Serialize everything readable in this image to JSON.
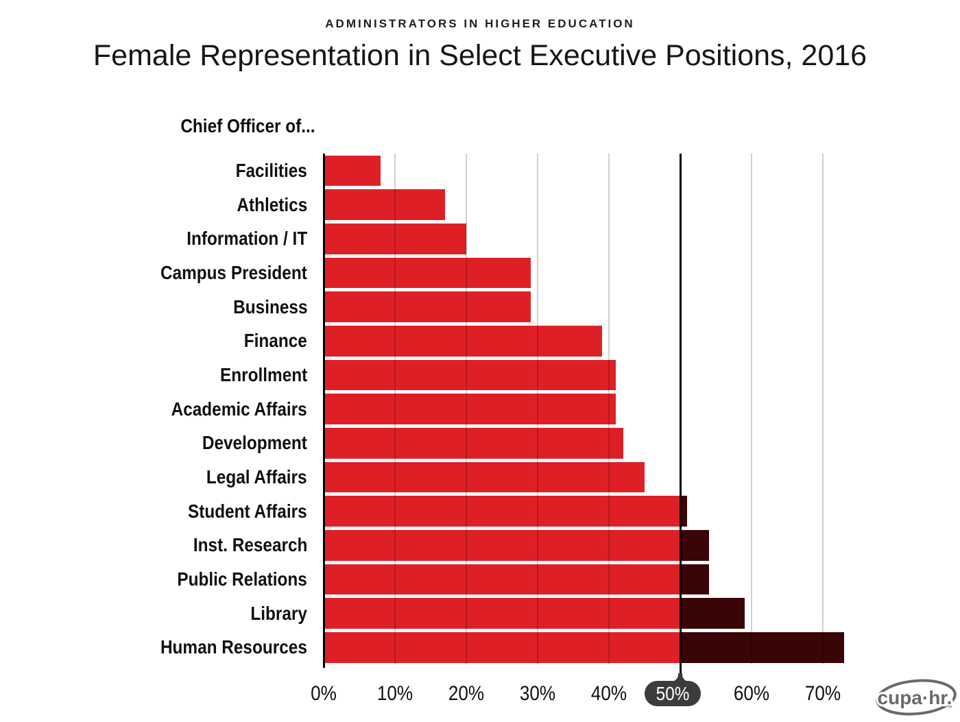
{
  "header": {
    "kicker": "ADMINISTRATORS IN HIGHER EDUCATION",
    "title": "Female Representation in Select Executive Positions, 2016"
  },
  "chart_data": {
    "type": "bar",
    "orientation": "horizontal",
    "group_label": "Chief Officer of...",
    "categories": [
      "Facilities",
      "Athletics",
      "Information / IT",
      "Campus President",
      "Business",
      "Finance",
      "Enrollment",
      "Academic Affairs",
      "Development",
      "Legal Affairs",
      "Student Affairs",
      "Inst. Research",
      "Public Relations",
      "Library",
      "Human Resources"
    ],
    "values": [
      8,
      17,
      20,
      29,
      29,
      39,
      41,
      41,
      42,
      45,
      51,
      54,
      54,
      59,
      73
    ],
    "unit": "%",
    "xlim": [
      0,
      75
    ],
    "x_tick_values": [
      0,
      10,
      20,
      30,
      40,
      50,
      60,
      70
    ],
    "x_tick_labels": [
      "0%",
      "10%",
      "20%",
      "30%",
      "40%",
      "50%",
      "60%",
      "70%"
    ],
    "threshold": {
      "value": 50,
      "label": "50%"
    },
    "grid": true,
    "legend": null,
    "colors": {
      "bar_below_threshold": "#DF1F26",
      "bar_above_threshold": "#3A0506",
      "threshold_line": "#000000",
      "threshold_badge": "#3C3C3C",
      "gridline": "#C9C9C9",
      "axis_line": "#000000"
    }
  },
  "footer": {
    "logo_text": "cupa·hr.",
    "logo_tm": "™"
  }
}
